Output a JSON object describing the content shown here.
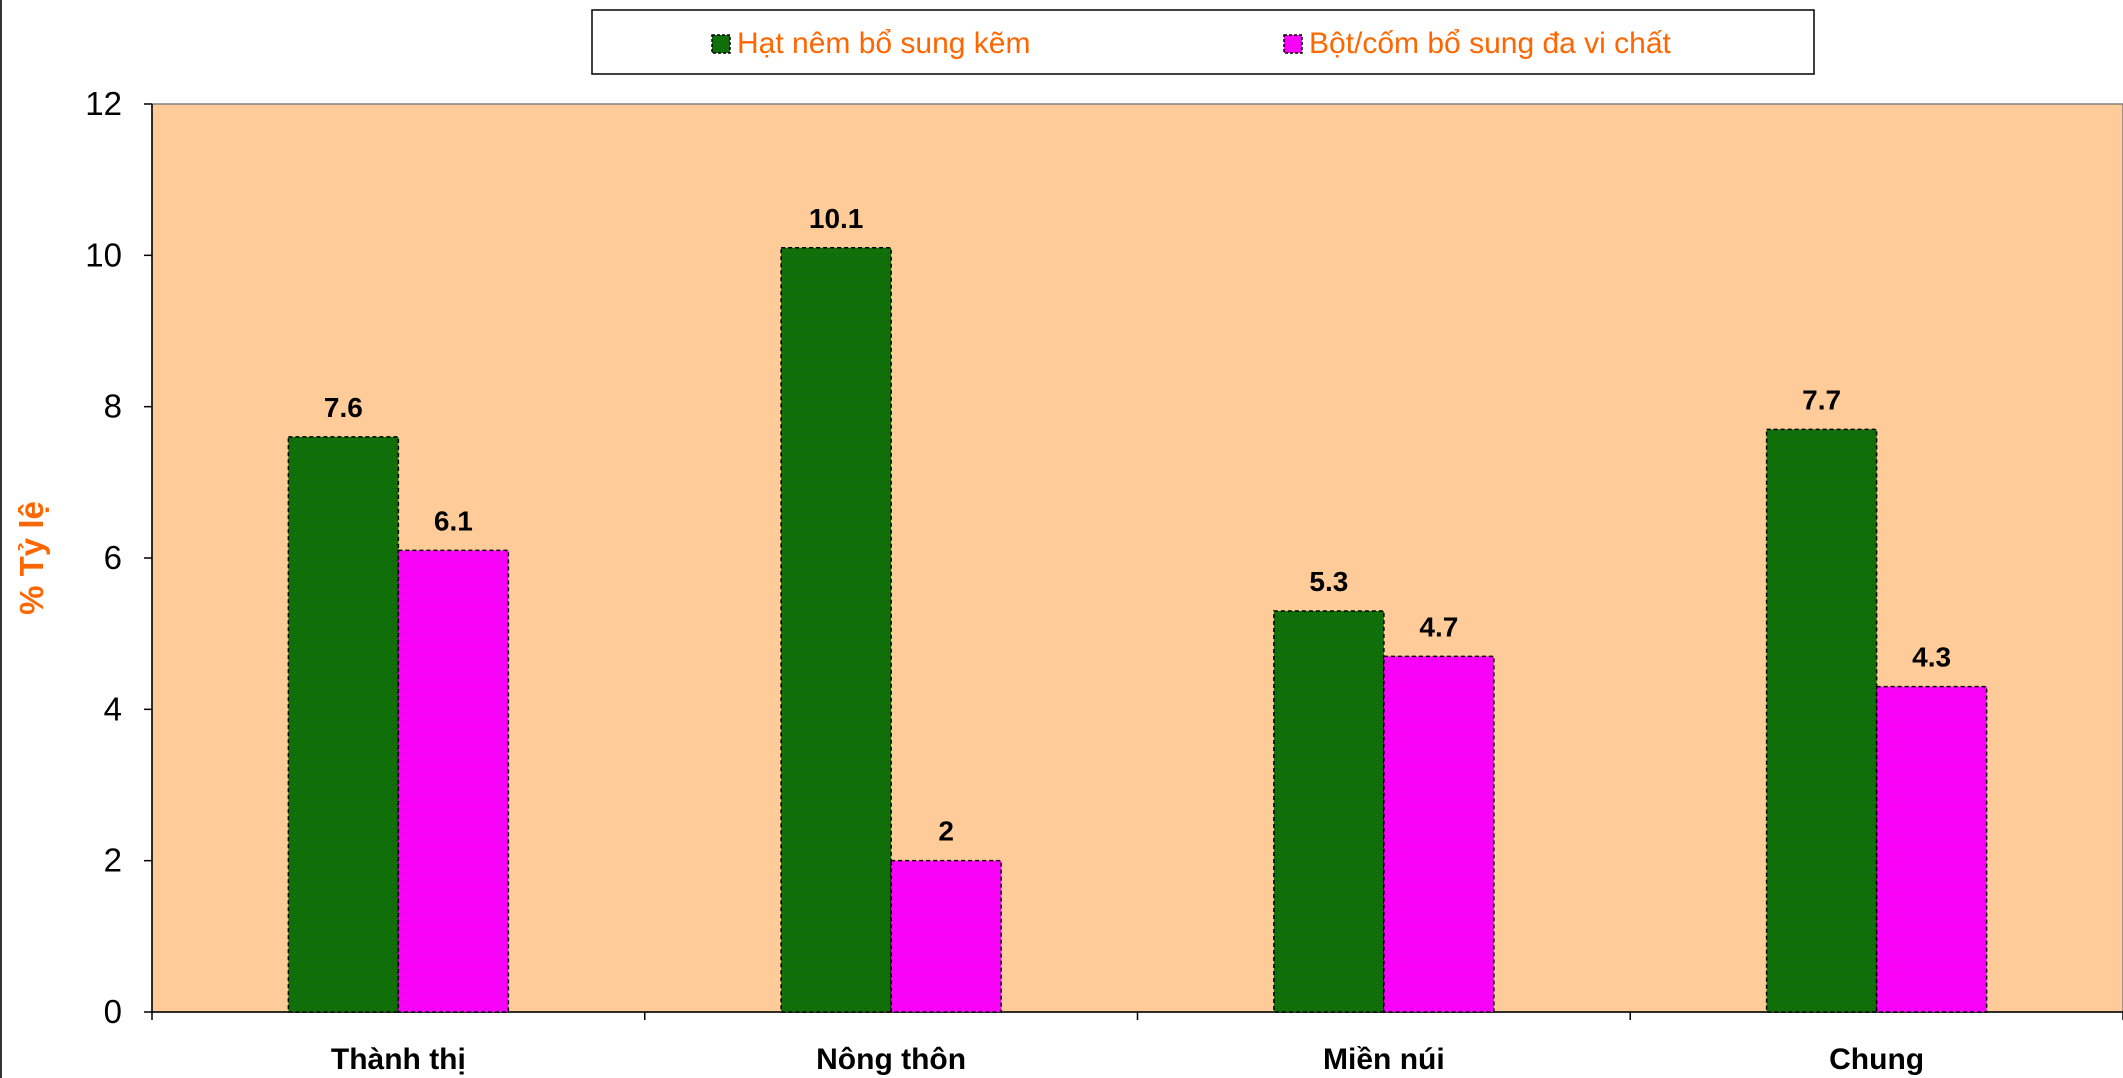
{
  "chart_data": {
    "type": "bar",
    "categories": [
      "Thành thị",
      "Nông thôn",
      "Miền núi",
      "Chung"
    ],
    "series": [
      {
        "name": "Hạt nêm bổ sung kẽm",
        "values": [
          7.6,
          10.1,
          5.3,
          7.7
        ],
        "color": "#0f7308"
      },
      {
        "name": "Bột/cốm bổ sung đa vi chất",
        "values": [
          6.1,
          2,
          4.7,
          4.3
        ],
        "color": "#ff00ff"
      }
    ],
    "data_labels": [
      [
        "7.6",
        "10.1",
        "5.3",
        "7.7"
      ],
      [
        "6.1",
        "2",
        "4.7",
        "4.3"
      ]
    ],
    "ylabel": "% Tỷ lệ",
    "ylim": [
      0,
      12
    ],
    "yticks": [
      "0",
      "2",
      "4",
      "6",
      "8",
      "10",
      "12"
    ],
    "grid": false,
    "legend_position": "top",
    "plot_background": "#ffcc99",
    "legend_text_color": "#ff6600",
    "ylabel_color": "#ff6600"
  }
}
